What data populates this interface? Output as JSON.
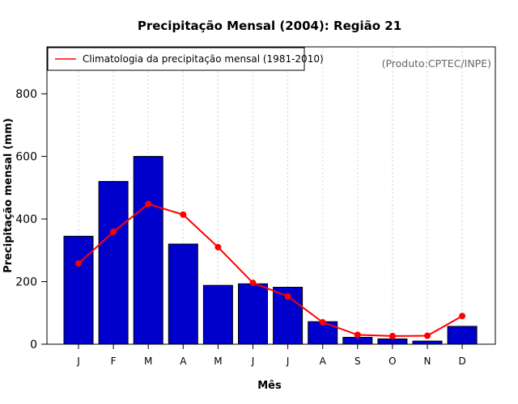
{
  "chart_data": {
    "type": "bar",
    "title": "Precipitação Mensal (2004): Região 21",
    "xlabel": "Mês",
    "ylabel": "Precipitação mensal (mm)",
    "categories": [
      "J",
      "F",
      "M",
      "A",
      "M",
      "J",
      "J",
      "A",
      "S",
      "O",
      "N",
      "D"
    ],
    "ylim": [
      0,
      950
    ],
    "yticks": [
      0,
      200,
      400,
      600,
      800
    ],
    "grid": "vertical dotted",
    "series": [
      {
        "name": "Precipitação mensal 2004",
        "kind": "bar",
        "color": "#0000cd",
        "values": [
          345,
          520,
          600,
          320,
          188,
          193,
          182,
          72,
          22,
          17,
          10,
          57
        ]
      },
      {
        "name": "Climatologia da precipitação mensal (1981-2010)",
        "kind": "line",
        "color": "#ff0000",
        "values": [
          258,
          359,
          448,
          414,
          310,
          196,
          153,
          70,
          30,
          26,
          27,
          90
        ]
      }
    ],
    "legend": {
      "position": "top-left",
      "entries": [
        "Climatologia da precipitação mensal (1981-2010)"
      ]
    },
    "annotation": "(Produto:CPTEC/INPE)"
  }
}
